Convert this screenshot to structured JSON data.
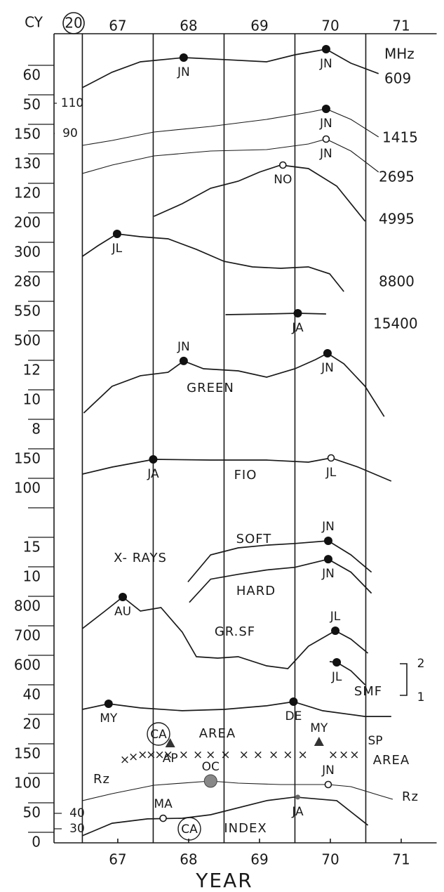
{
  "chart_data": {
    "type": "stacked-traces",
    "cycle_label": "CY",
    "cycle": 20,
    "x_label": "YEAR",
    "xlim": [
      66.1,
      71.5
    ],
    "xticks": [
      67,
      68,
      69,
      70,
      71
    ],
    "year_boundaries": [
      66.5,
      67.5,
      68.5,
      69.5,
      70.5
    ],
    "left_labels": [
      60,
      50,
      150,
      130,
      120,
      200,
      300,
      280,
      550,
      500,
      12,
      10,
      8,
      150,
      100,
      null,
      15,
      10,
      800,
      700,
      600,
      40,
      20,
      150,
      100,
      50,
      0
    ],
    "inner_labels": [
      110,
      90,
      40,
      30
    ],
    "annotations": [
      "X- RAYS",
      "SP",
      "AREA",
      "2",
      "1"
    ],
    "traces": [
      {
        "name": "609",
        "unit": "MHz",
        "ylim": [
          49.5,
          72
        ],
        "x": [
          66.5,
          66.92,
          67.32,
          67.93,
          68.5,
          69.1,
          69.5,
          69.94,
          70.29,
          70.68
        ],
        "values": [
          55.8,
          61.3,
          65,
          66.5,
          65.8,
          65,
          67.5,
          69.5,
          64.5,
          60.8
        ],
        "markers": [
          {
            "x": 67.93,
            "value": 66.5,
            "label": "JN"
          },
          {
            "x": 69.94,
            "value": 69.5,
            "label": "JN"
          }
        ]
      },
      {
        "name": "1415",
        "ylim": [
          76,
          113.5
        ],
        "x": [
          66.5,
          66.92,
          67.51,
          68.31,
          69.1,
          69.69,
          69.94,
          70.29,
          70.68
        ],
        "values": [
          80,
          83.5,
          89.5,
          93.5,
          98.5,
          103.5,
          106,
          98.5,
          86
        ],
        "markers": [
          {
            "x": 69.94,
            "value": 106,
            "label": "JN"
          }
        ]
      },
      {
        "name": "2695",
        "ylim": [
          116.5,
          151.5
        ],
        "x": [
          66.5,
          66.92,
          67.51,
          68.31,
          69.1,
          69.69,
          69.94,
          70.29,
          70.68
        ],
        "values": [
          120.5,
          126.5,
          133,
          136.5,
          137.5,
          141.5,
          145,
          136.5,
          121.5
        ],
        "markers": [
          {
            "x": 69.94,
            "value": 145,
            "label": "JN",
            "shape": "open"
          }
        ]
      },
      {
        "name": "4995",
        "ylim": [
          95,
          142.5
        ],
        "x": [
          67.51,
          67.91,
          68.31,
          68.7,
          69,
          69.3,
          69.69,
          70.09,
          70.49
        ],
        "values": [
          101,
          110,
          121,
          126,
          132.5,
          137.5,
          135,
          122.5,
          97.5
        ],
        "markers": [
          {
            "x": 69.33,
            "value": 137.5,
            "label": "NO",
            "shape": "open"
          }
        ]
      },
      {
        "name": "8800",
        "ylim": [
          270.7,
          314.9
        ],
        "x": [
          66.5,
          66.72,
          66.99,
          67.32,
          67.71,
          68.11,
          68.5,
          68.9,
          69.3,
          69.69,
          69.99,
          70.19
        ],
        "values": [
          296.3,
          303.3,
          311.2,
          309.3,
          307.9,
          300.9,
          293,
          289.3,
          288.4,
          289.3,
          284.7,
          273
        ],
        "markers": [
          {
            "x": 66.99,
            "value": 311.2,
            "label": "JL"
          }
        ]
      },
      {
        "name": "15400",
        "ylim": [
          532,
          562
        ],
        "x": [
          68.52,
          69.1,
          69.54,
          69.94
        ],
        "values": [
          544,
          545,
          546,
          545
        ],
        "markers": [
          {
            "x": 69.54,
            "value": 546,
            "label": "JA"
          }
        ]
      },
      {
        "name": "GREEN",
        "ylim": [
          8.57,
          13.57
        ],
        "x": [
          66.52,
          66.92,
          67.32,
          67.71,
          67.93,
          68.21,
          68.7,
          69.1,
          69.5,
          69.79,
          69.96,
          70.19,
          70.49,
          70.76
        ],
        "values": [
          9.14,
          10.95,
          11.67,
          11.9,
          12.67,
          12.14,
          12,
          11.57,
          12.14,
          12.76,
          13.19,
          12.48,
          10.95,
          8.9
        ],
        "markers": [
          {
            "x": 67.93,
            "value": 12.67,
            "label": "JN"
          },
          {
            "x": 69.96,
            "value": 13.19,
            "label": "JN"
          }
        ]
      },
      {
        "name": "FIO",
        "ylim": [
          100,
          168.75
        ],
        "x": [
          66.5,
          66.92,
          67.51,
          68.31,
          69.1,
          69.69,
          70.01,
          70.39,
          70.86
        ],
        "values": [
          125,
          137.5,
          151.25,
          150,
          150,
          146.25,
          153.75,
          137.5,
          112.5
        ],
        "markers": [
          {
            "x": 67.5,
            "value": 151.25,
            "label": "JA"
          },
          {
            "x": 70.01,
            "value": 153.75,
            "label": "JL",
            "shape": "open"
          }
        ]
      },
      {
        "name": "SOFT",
        "ylim": [
          4.6,
          17.6
        ],
        "x": [
          67.99,
          68.31,
          68.7,
          69.1,
          69.5,
          69.97,
          70.29,
          70.58
        ],
        "values": [
          8.7,
          13.7,
          15,
          15.5,
          15.8,
          16.3,
          13.7,
          10.5
        ],
        "markers": [
          {
            "x": 69.97,
            "value": 16.3,
            "label": "JN"
          }
        ]
      },
      {
        "name": "HARD",
        "ylim": [
          4.6,
          17.6
        ],
        "x": [
          68.01,
          68.31,
          68.7,
          69.1,
          69.5,
          69.97,
          70.29,
          70.58
        ],
        "values": [
          4.9,
          9.2,
          10.1,
          10.9,
          11.4,
          12.9,
          10.5,
          6.6
        ],
        "markers": [
          {
            "x": 69.97,
            "value": 12.9,
            "label": "JN"
          }
        ]
      },
      {
        "name": "GR.SF",
        "ylim": [
          588.5,
          858.75
        ],
        "x": [
          66.5,
          66.82,
          67.07,
          67.32,
          67.61,
          67.91,
          68.11,
          68.41,
          68.7,
          69.1,
          69.4,
          69.69,
          70.07,
          70.29,
          70.53
        ],
        "values": [
          729.5,
          788.3,
          835.3,
          788.3,
          800,
          717.7,
          635.5,
          630.8,
          635.5,
          605,
          595.6,
          670.8,
          722.5,
          694.3,
          647.3
        ],
        "markers": [
          {
            "x": 67.07,
            "value": 835.3,
            "label": "AU"
          },
          {
            "x": 70.07,
            "value": 722.5,
            "label": "JL"
          }
        ]
      },
      {
        "name": "SMF",
        "ylim": [
          530,
          620
        ],
        "x": [
          69.99,
          70.09,
          70.29,
          70.49
        ],
        "values": [
          618.8,
          616.5,
          588.3,
          541.3
        ],
        "markers": [
          {
            "x": 70.09,
            "value": 616.5,
            "label": "JL"
          }
        ]
      },
      {
        "ylim": [
          22.4,
          41.4
        ],
        "x": [
          66.5,
          66.87,
          67.32,
          67.91,
          68.5,
          69.1,
          69.48,
          69.89,
          70.49,
          70.86
        ],
        "values": [
          31.9,
          35.7,
          32.9,
          31,
          31.9,
          34.3,
          37.1,
          31,
          27.1,
          27.1
        ],
        "markers": [
          {
            "x": 66.87,
            "value": 35.7,
            "label": "MY"
          },
          {
            "x": 69.48,
            "value": 37.1,
            "label": "DE"
          }
        ]
      },
      {
        "name": "AREA",
        "circled": "CA",
        "style": "crosses",
        "ylim": [
          100,
          180
        ],
        "x": [
          67.1,
          67.22,
          67.35,
          67.47,
          67.59,
          67.71,
          67.93,
          68.13,
          68.31,
          68.52,
          68.78,
          68.98,
          69.2,
          69.4,
          69.61,
          70.04,
          70.19,
          70.34
        ],
        "values": [
          145.2,
          150,
          153.6,
          153.6,
          153.6,
          153.6,
          153.6,
          153.6,
          153.6,
          153.6,
          153.6,
          153.6,
          153.6,
          153.6,
          153.6,
          153.6,
          153.6,
          153.6
        ],
        "markers": [
          {
            "x": 67.74,
            "value": 172.6,
            "label": "AP",
            "shape": "triangle"
          },
          {
            "x": 69.84,
            "value": 175,
            "label": "MY",
            "shape": "triangle"
          }
        ]
      },
      {
        "name": "Rz",
        "ylim": [
          70.9,
          123.3
        ],
        "x": [
          66.5,
          66.92,
          67.51,
          68.31,
          68.7,
          69.3,
          69.97,
          70.29,
          70.68,
          70.88
        ],
        "values": [
          76.7,
          88.4,
          102.3,
          109.3,
          105.8,
          103.5,
          103.5,
          100,
          86,
          79.1
        ],
        "markers": [
          {
            "x": 68.31,
            "value": 109.3,
            "label": "OC",
            "shape": "large"
          },
          {
            "x": 69.97,
            "value": 103.5,
            "label": "JN",
            "shape": "open"
          }
        ]
      },
      {
        "name": "INDEX",
        "circled": "CA",
        "ylim": [
          23.2,
          52.7
        ],
        "x": [
          66.5,
          66.92,
          67.42,
          67.91,
          68.31,
          69.1,
          69.5,
          70.09,
          70.53
        ],
        "values": [
          25.5,
          33.6,
          36.4,
          36.8,
          39.1,
          48.2,
          50.5,
          48.2,
          32.3
        ],
        "markers": [
          {
            "x": 67.64,
            "value": 36.8,
            "label": "MA",
            "shape": "open"
          },
          {
            "x": 69.54,
            "value": 50.5,
            "label": "JA",
            "shape": "small"
          }
        ]
      }
    ]
  }
}
